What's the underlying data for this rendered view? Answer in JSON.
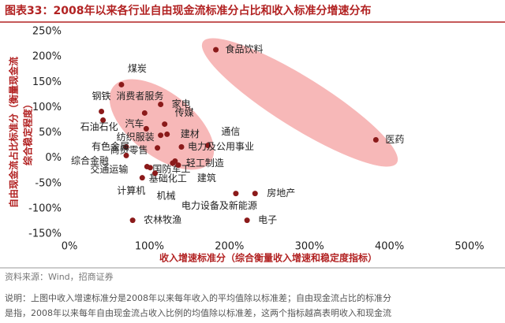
{
  "header": {
    "title": "图表33：2008年以来各行业自由现金流标准分占比和收入标准分增速分布"
  },
  "chart_data": {
    "type": "scatter",
    "x_label": "收入增速标准分（综合衡量收入增速和稳定度指标）",
    "y_label": [
      "自由现金流占比标准分（衡量现金流",
      "综合稳定程度）"
    ],
    "color": "#8b1a1a",
    "xlim": [
      0,
      500
    ],
    "ylim": [
      -150,
      250
    ],
    "xticks": [
      {
        "value": 0,
        "label": "0%"
      },
      {
        "value": 100,
        "label": "100%"
      },
      {
        "value": 200,
        "label": "200%"
      },
      {
        "value": 300,
        "label": "300%"
      },
      {
        "value": 400,
        "label": "400%"
      },
      {
        "value": 500,
        "label": "500%"
      }
    ],
    "yticks": [
      {
        "value": 250,
        "label": "250%"
      },
      {
        "value": 200,
        "label": "200%"
      },
      {
        "value": 150,
        "label": "150%"
      },
      {
        "value": 100,
        "label": "100%"
      },
      {
        "value": 50,
        "label": "50%"
      },
      {
        "value": 0,
        "label": "0%"
      },
      {
        "value": -50,
        "label": "-50%"
      },
      {
        "value": -100,
        "label": "-100%"
      },
      {
        "value": -150,
        "label": "-150%"
      }
    ],
    "names": [
      "食品饮料",
      "医药",
      "煤炭",
      "钢铁",
      "石油石化",
      "消费者服务",
      "家电",
      "传媒",
      "汽车",
      "纺织服装",
      "建材",
      "通信",
      "电力及公用事业",
      "有色金属",
      "商贸零售",
      "综合金融",
      "交通运输",
      "国防军工",
      "轻工制造",
      "基础化工",
      "建筑",
      "计算机",
      "机械",
      "房地产",
      "电力设备及新能源",
      "电子",
      "农林牧渔"
    ],
    "x": [
      183,
      383,
      65,
      40,
      42,
      94,
      114,
      119,
      96,
      114,
      122,
      173,
      140,
      71,
      110,
      71,
      97,
      101,
      132,
      129,
      136,
      91,
      107,
      232,
      208,
      222,
      79
    ],
    "y": [
      214,
      36,
      145,
      92,
      75,
      89,
      106,
      67,
      58,
      45,
      47,
      25,
      22,
      22,
      20,
      5,
      -17,
      -19,
      -6,
      -10,
      -14,
      -39,
      -30,
      -70,
      -70,
      -123,
      -123
    ]
  },
  "footer": {
    "source": "资料来源：Wind，招商证券",
    "note": [
      "说明：上图中收入增速标准分是2008年以来每年收入的平均值除以标准差；自由现金流占比的标准分",
      "是指，2008年以来每年自由现金流占收入比例的均值除以标准差，这两个指标越高表明收入和现金流"
    ]
  }
}
